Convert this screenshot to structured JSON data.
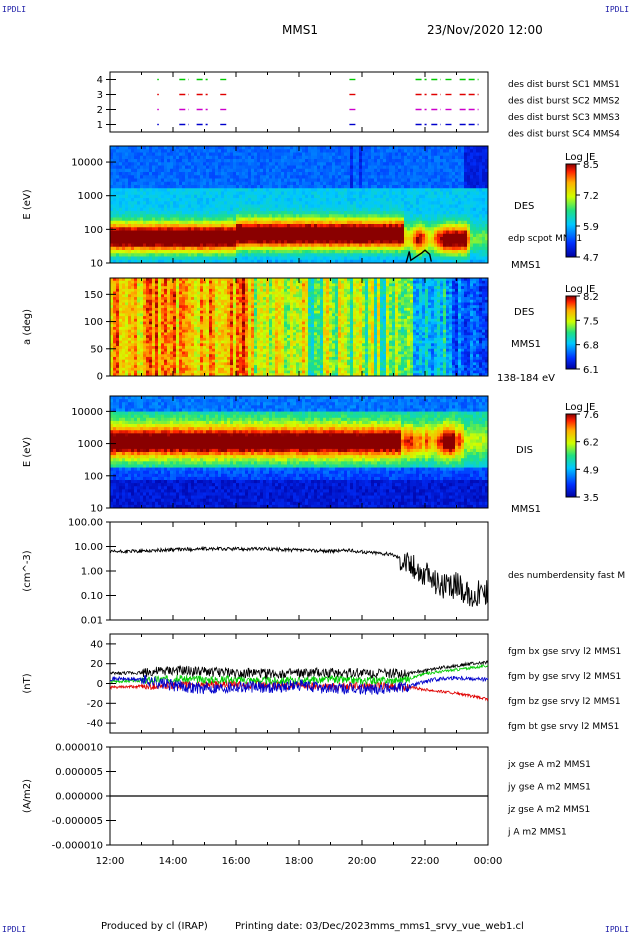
{
  "header": {
    "corner_label": "IPDLI",
    "spacecraft": "MMS1",
    "datetime": "23/Nov/2020 12:00"
  },
  "footer": {
    "produced": "Produced by cl (IRAP)",
    "printing": "Printing date: 03/Dec/2023",
    "file": "mms_mms1_srvy_vue_web1.cl"
  },
  "time_axis": {
    "ticks": [
      "12:00",
      "14:00",
      "16:00",
      "18:00",
      "20:00",
      "22:00",
      "00:00"
    ]
  },
  "colors": {
    "blue": "#0000cc",
    "magenta": "#cc00cc",
    "red": "#e00000",
    "green": "#00cc00",
    "black": "#000000"
  },
  "chart_data": [
    {
      "type": "scatter",
      "panel": "burst-availability",
      "ylim": [
        0.5,
        4.5
      ],
      "y_ticks": [
        "1",
        "2",
        "3",
        "4"
      ],
      "labels": [
        {
          "text": "des dist burst SC1 MMS1",
          "color": "#0000cc"
        },
        {
          "text": "des dist burst SC2 MMS2",
          "color": "#cc00cc"
        },
        {
          "text": "des dist burst SC3 MMS3",
          "color": "#e00000"
        },
        {
          "text": "des dist burst SC4 MMS4",
          "color": "#00cc00"
        }
      ],
      "segments_hours": [
        [
          13.5,
          13.55
        ],
        [
          14.2,
          14.5
        ],
        [
          14.75,
          15.1
        ],
        [
          15.5,
          15.75
        ],
        [
          19.6,
          19.8
        ],
        [
          21.7,
          22.05
        ],
        [
          22.2,
          22.5
        ],
        [
          22.65,
          22.85
        ],
        [
          23.1,
          23.7
        ]
      ]
    },
    {
      "type": "heatmap",
      "panel": "des-energy",
      "ylabel": "E (eV)",
      "yscale": "log",
      "ylim": [
        10,
        30000
      ],
      "y_ticks": [
        "10",
        "100",
        "1000",
        "10000"
      ],
      "label": "DES",
      "sublabel": "MMS1",
      "overlay": "edp scpot MMS1",
      "colorbar": {
        "title": "Log JE",
        "ticks": [
          "8.5",
          "7.2",
          "5.9",
          "4.7"
        ]
      }
    },
    {
      "type": "heatmap",
      "panel": "des-pitch-angle",
      "ylabel": "a (deg)",
      "ylim": [
        0,
        180
      ],
      "y_ticks": [
        "0",
        "50",
        "100",
        "150"
      ],
      "label": "DES",
      "sublabel": "MMS1",
      "energy_range": "138-184 eV",
      "colorbar": {
        "title": "Log JE",
        "ticks": [
          "8.2",
          "7.5",
          "6.8",
          "6.1"
        ]
      }
    },
    {
      "type": "heatmap",
      "panel": "dis-energy",
      "ylabel": "E (eV)",
      "yscale": "log",
      "ylim": [
        10,
        30000
      ],
      "y_ticks": [
        "10",
        "100",
        "1000",
        "10000"
      ],
      "label": "DIS",
      "sublabel": "MMS1",
      "colorbar": {
        "title": "Log JE",
        "ticks": [
          "7.6",
          "6.2",
          "4.9",
          "3.5"
        ]
      }
    },
    {
      "type": "line",
      "panel": "density",
      "ylabel": "(cm^-3)",
      "yscale": "log",
      "ylim": [
        0.01,
        100
      ],
      "y_ticks": [
        "0.01",
        "0.10",
        "1.00",
        "10.00",
        "100.00"
      ],
      "series": [
        {
          "name": "des numberdensity fast M",
          "x_hours": [
            12.0,
            13.0,
            14.0,
            15.0,
            16.0,
            17.0,
            18.0,
            19.0,
            19.5,
            20.0,
            20.5,
            21.0,
            21.3,
            21.6,
            21.9,
            22.2,
            22.5,
            22.8,
            23.1,
            23.4,
            23.7,
            24.0
          ],
          "values": [
            6.0,
            6.5,
            7.5,
            8.0,
            8.0,
            8.0,
            7.0,
            6.5,
            7.0,
            6.0,
            5.5,
            4.5,
            3.0,
            1.5,
            0.8,
            0.5,
            0.3,
            0.2,
            0.3,
            0.08,
            0.15,
            0.12
          ]
        }
      ]
    },
    {
      "type": "line",
      "panel": "magnetic-field",
      "ylabel": "(nT)",
      "ylim": [
        -50,
        50
      ],
      "y_ticks": [
        "-40",
        "-20",
        "0",
        "20",
        "40"
      ],
      "series": [
        {
          "name": "fgm bx gse srvy l2 MMS1",
          "color": "#e00000",
          "x_hours": [
            12,
            13,
            14,
            15,
            16,
            17,
            18,
            19,
            20,
            21,
            21.5,
            22,
            22.5,
            23,
            23.5,
            24
          ],
          "values": [
            -4,
            -3,
            -2,
            -1,
            -1,
            -2,
            -2,
            -3,
            -2,
            -3,
            -4,
            -6,
            -8,
            -10,
            -13,
            -16
          ]
        },
        {
          "name": "fgm by gse srvy l2 MMS1",
          "color": "#00cc00",
          "x_hours": [
            12,
            13,
            14,
            15,
            16,
            17,
            18,
            19,
            20,
            21,
            21.5,
            22,
            22.5,
            23,
            23.5,
            24
          ],
          "values": [
            2,
            3,
            5,
            4,
            4,
            3,
            3,
            4,
            3,
            3,
            5,
            10,
            12,
            14,
            16,
            18
          ]
        },
        {
          "name": "fgm bz gse srvy l2 MMS1",
          "color": "#0000cc",
          "x_hours": [
            12,
            13,
            14,
            15,
            16,
            17,
            18,
            19,
            20,
            21,
            21.5,
            22,
            22.5,
            23,
            23.5,
            24
          ],
          "values": [
            5,
            4,
            -2,
            -5,
            -3,
            -4,
            -2,
            -5,
            -6,
            -4,
            -3,
            2,
            5,
            6,
            5,
            4
          ]
        },
        {
          "name": "fgm bt gse srvy l2 MMS1",
          "color": "#000000",
          "x_hours": [
            12,
            13,
            14,
            15,
            16,
            17,
            18,
            19,
            20,
            21,
            21.5,
            22,
            22.5,
            23,
            23.5,
            24
          ],
          "values": [
            10,
            11,
            13,
            12,
            11,
            10,
            10,
            11,
            11,
            10,
            11,
            13,
            16,
            18,
            20,
            21
          ]
        }
      ]
    },
    {
      "type": "line",
      "panel": "current-density",
      "ylabel": "(A/m2)",
      "ylim": [
        -1e-05,
        1e-05
      ],
      "y_ticks": [
        "-0.000010",
        "-0.000005",
        "0.000000",
        "0.000005",
        "0.000010"
      ],
      "series": [
        {
          "name": "jx gse A m2 MMS1",
          "color": "#e00000",
          "x_hours": [
            12,
            24
          ],
          "values": [
            0,
            0
          ]
        },
        {
          "name": "jy gse A m2 MMS1",
          "color": "#00cc00",
          "x_hours": [
            12,
            24
          ],
          "values": [
            0,
            0
          ]
        },
        {
          "name": "jz gse A m2 MMS1",
          "color": "#0000cc",
          "x_hours": [
            12,
            24
          ],
          "values": [
            0,
            0
          ]
        },
        {
          "name": "j A m2 MMS1",
          "color": "#000000",
          "x_hours": [
            12,
            24
          ],
          "values": [
            0,
            0
          ]
        }
      ]
    }
  ]
}
